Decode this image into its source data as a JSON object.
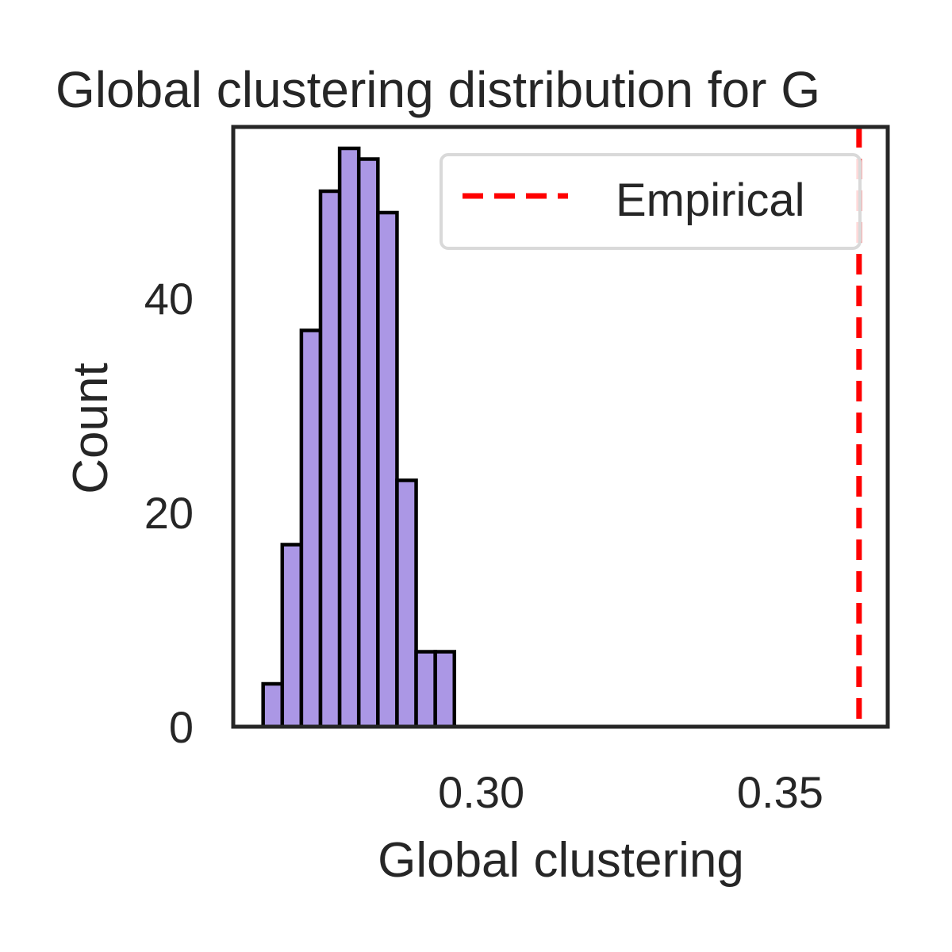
{
  "chart_data": {
    "type": "bar",
    "subtype": "histogram",
    "title": "Global clustering distribution for G",
    "xlabel": "Global clustering",
    "ylabel": "Count",
    "xlim": [
      0.2585,
      0.368
    ],
    "ylim": [
      0,
      56
    ],
    "xticks": [
      0.3,
      0.35
    ],
    "xtick_labels": [
      "0.30",
      "0.35"
    ],
    "yticks": [
      0,
      20,
      40
    ],
    "ytick_labels": [
      "0",
      "20",
      "40"
    ],
    "bin_edges": [
      0.2635,
      0.2667,
      0.2699,
      0.2731,
      0.2763,
      0.2795,
      0.2827,
      0.2859,
      0.2891,
      0.2923,
      0.2955
    ],
    "counts": [
      4,
      17,
      37,
      50,
      54,
      53,
      48,
      23,
      7,
      7
    ],
    "bar_color": "#ab97e5",
    "bar_edge_color": "#000000",
    "empirical_line": {
      "x": 0.3632,
      "color": "#ff0000",
      "style": "dashed"
    },
    "legend": {
      "placement": "top-right",
      "entries": [
        {
          "label": "Empirical",
          "color": "#ff0000",
          "style": "dashed"
        }
      ]
    },
    "grid": false
  }
}
